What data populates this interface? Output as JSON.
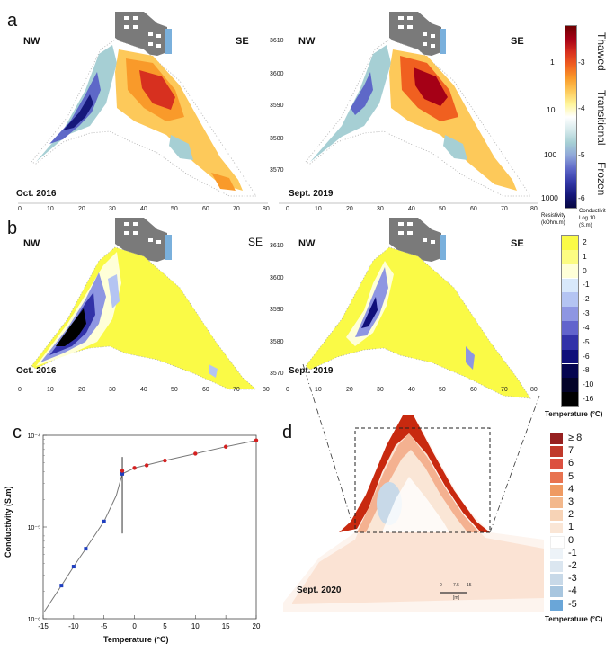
{
  "panels": {
    "a": {
      "letter": "a",
      "left": {
        "nw": "NW",
        "se": "SE",
        "date": "Oct. 2016"
      },
      "right": {
        "nw": "NW",
        "se": "SE",
        "date": "Sept. 2019"
      }
    },
    "b": {
      "letter": "b",
      "left": {
        "nw": "NW",
        "se": "SE",
        "date": "Oct. 2016"
      },
      "right": {
        "nw": "NW",
        "se": "SE",
        "date": "Sept. 2019"
      }
    },
    "c": {
      "letter": "c"
    },
    "d": {
      "letter": "d",
      "date": "Sept. 2020",
      "scale_ticks": [
        "0",
        "7.5",
        "15"
      ],
      "scale_unit": "[m]"
    }
  },
  "x_ticks": [
    "0",
    "10",
    "20",
    "30",
    "40",
    "50",
    "60",
    "70",
    "80"
  ],
  "y_ticks": [
    "3610",
    "3600",
    "3590",
    "3580",
    "3570"
  ],
  "colorbar_a": {
    "left_ticks": [
      "1",
      "10",
      "100",
      "1000"
    ],
    "right_ticks": [
      "-3",
      "-4",
      "-5",
      "-6"
    ],
    "words": [
      "Thawed",
      "Transitional",
      "Frozen"
    ],
    "left_label_1": "Resistivity",
    "left_label_2": "(kOhm.m)",
    "right_label_1": "Conductivit",
    "right_label_2": "Log 10",
    "right_label_3": "(S.m)",
    "colors": [
      "#6e0000",
      "#a50016",
      "#d7301f",
      "#f06020",
      "#f99a2a",
      "#fdc95a",
      "#fff59a",
      "#ffffff",
      "#d6eaec",
      "#a6cfd4",
      "#8fa6d9",
      "#5e68c8",
      "#3439a8",
      "#16187a",
      "#080842"
    ]
  },
  "colorbar_b": {
    "ticks": [
      "2",
      "1",
      "0",
      "-1",
      "-2",
      "-3",
      "-4",
      "-5",
      "-6",
      "-8",
      "-10",
      "-16"
    ],
    "title": "Temperature (°C)",
    "colors": [
      "#fafa46",
      "#fcfc82",
      "#ffffd8",
      "#d8e8fa",
      "#b4c4f2",
      "#8e96e2",
      "#6264cc",
      "#3232a8",
      "#10107a",
      "#050550",
      "#030328",
      "#000000"
    ]
  },
  "legend_d": {
    "labels": [
      "≥ 8",
      "7",
      "6",
      "5",
      "4",
      "3",
      "2",
      "1",
      "0",
      "-1",
      "-2",
      "-3",
      "-4",
      "-5"
    ],
    "colors": [
      "#962020",
      "#c0392b",
      "#dc5040",
      "#e87350",
      "#ef9a62",
      "#f3b88c",
      "#f7d3b6",
      "#fae6d6",
      "#ffffff",
      "#edf3f8",
      "#dbe6f0",
      "#c8d9e8",
      "#a8c6df",
      "#6aa6d8"
    ],
    "title": "Temperature (°C)"
  },
  "chart_data": {
    "type": "scatter",
    "title": "",
    "xlabel": "Temperature (°C)",
    "ylabel": "Conductivity (S.m)",
    "xlim": [
      -15,
      20
    ],
    "ylim_log10": [
      -6,
      -4
    ],
    "x_ticks": [
      "-15",
      "-10",
      "-5",
      "0",
      "5",
      "10",
      "15",
      "20"
    ],
    "y_ticks": [
      "10⁻⁴",
      "10⁻⁵",
      "10⁻⁶"
    ],
    "series": [
      {
        "color": "#1f3fbf",
        "points": [
          [
            -12,
            2.3e-06
          ],
          [
            -10,
            3.7e-06
          ],
          [
            -8,
            5.8e-06
          ],
          [
            -5,
            1.15e-05
          ],
          [
            -2,
            3.8e-05
          ]
        ]
      },
      {
        "color": "#d42020",
        "points": [
          [
            -2,
            4.1e-05
          ],
          [
            0,
            4.4e-05
          ],
          [
            2,
            4.7e-05
          ],
          [
            5,
            5.3e-05
          ],
          [
            10,
            6.3e-05
          ],
          [
            15,
            7.5e-05
          ],
          [
            20,
            8.8e-05
          ]
        ]
      }
    ]
  }
}
